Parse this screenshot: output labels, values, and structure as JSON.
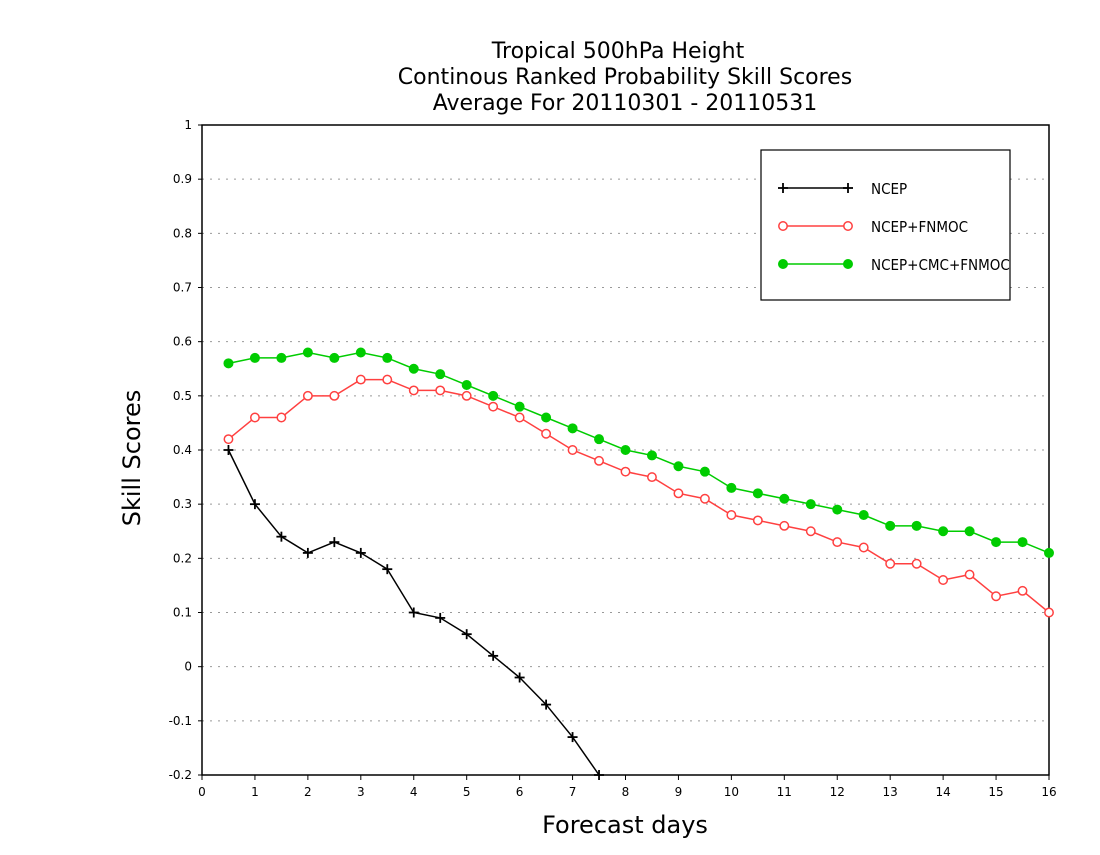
{
  "chart_data": {
    "type": "line",
    "title_lines": [
      "Tropical 500hPa Height",
      "Continous Ranked Probability Skill Scores",
      "Average For 20110301 - 20110531"
    ],
    "xlabel": "Forecast days",
    "ylabel": "Skill Scores",
    "xlim": [
      0,
      16
    ],
    "ylim": [
      -0.2,
      1
    ],
    "xticks": [
      0,
      1,
      2,
      3,
      4,
      5,
      6,
      7,
      8,
      9,
      10,
      11,
      12,
      13,
      14,
      15,
      16
    ],
    "xtick_labels": [
      "0",
      "1",
      "2",
      "3",
      "4",
      "5",
      "6",
      "7",
      "8",
      "9",
      "10",
      "11",
      "12",
      "13",
      "14",
      "15",
      "16"
    ],
    "yticks": [
      -0.2,
      -0.1,
      0,
      0.1,
      0.2,
      0.3,
      0.4,
      0.5,
      0.6,
      0.7,
      0.8,
      0.9,
      1
    ],
    "ytick_labels": [
      "-0.2",
      "-0.1",
      "0",
      "0.1",
      "0.2",
      "0.3",
      "0.4",
      "0.5",
      "0.6",
      "0.7",
      "0.8",
      "0.9",
      "1"
    ],
    "grid": "horizontal dotted",
    "legend_position": "top-right",
    "x": [
      0.5,
      1,
      1.5,
      2,
      2.5,
      3,
      3.5,
      4,
      4.5,
      5,
      5.5,
      6,
      6.5,
      7,
      7.5,
      8,
      8.5,
      9,
      9.5,
      10,
      10.5,
      11,
      11.5,
      12,
      12.5,
      13,
      13.5,
      14,
      14.5,
      15,
      15.5,
      16
    ],
    "series": [
      {
        "name": "NCEP",
        "color": "#000000",
        "marker": "plus",
        "values": [
          0.4,
          0.3,
          0.24,
          0.21,
          0.23,
          0.21,
          0.18,
          0.1,
          0.09,
          0.06,
          0.02,
          -0.02,
          -0.07,
          -0.13,
          -0.2,
          null,
          null,
          null,
          null,
          null,
          null,
          null,
          null,
          null,
          null,
          null,
          null,
          null,
          null,
          null,
          null,
          null
        ]
      },
      {
        "name": "NCEP+FNMOC",
        "color": "#ff4040",
        "marker": "open-circle",
        "values": [
          0.42,
          0.46,
          0.46,
          0.5,
          0.5,
          0.53,
          0.53,
          0.51,
          0.51,
          0.5,
          0.48,
          0.46,
          0.43,
          0.4,
          0.38,
          0.36,
          0.35,
          0.32,
          0.31,
          0.28,
          0.27,
          0.26,
          0.25,
          0.23,
          0.22,
          0.19,
          0.19,
          0.16,
          0.17,
          0.13,
          0.14,
          0.1
        ]
      },
      {
        "name": "NCEP+CMC+FNMOC",
        "color": "#00cc00",
        "marker": "filled-circle",
        "values": [
          0.56,
          0.57,
          0.57,
          0.58,
          0.57,
          0.58,
          0.57,
          0.55,
          0.54,
          0.52,
          0.5,
          0.48,
          0.46,
          0.44,
          0.42,
          0.4,
          0.39,
          0.37,
          0.36,
          0.33,
          0.32,
          0.31,
          0.3,
          0.29,
          0.28,
          0.26,
          0.26,
          0.25,
          0.25,
          0.23,
          0.23,
          0.21
        ]
      }
    ]
  }
}
